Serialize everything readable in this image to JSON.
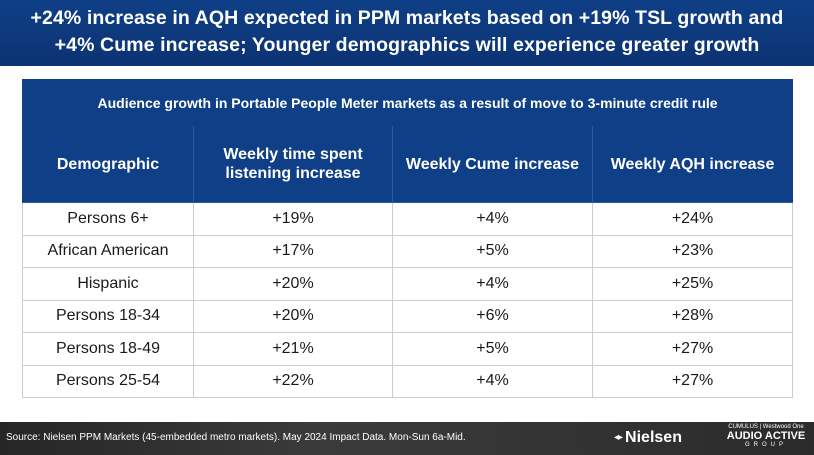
{
  "header": {
    "title_line1": "+24% increase in AQH expected in PPM markets based on +19% TSL growth and",
    "title_line2": "+4% Cume increase; Younger demographics will experience greater growth"
  },
  "table": {
    "caption": "Audience growth in Portable People Meter markets as a result of move to 3-minute credit rule",
    "columns": [
      "Demographic",
      "Weekly time spent listening increase",
      "Weekly Cume increase",
      "Weekly AQH increase"
    ],
    "rows": [
      [
        "Persons 6+",
        "+19%",
        "+4%",
        "+24%"
      ],
      [
        "African American",
        "+17%",
        "+5%",
        "+23%"
      ],
      [
        "Hispanic",
        "+20%",
        "+4%",
        "+25%"
      ],
      [
        "Persons 18-34",
        "+20%",
        "+6%",
        "+28%"
      ],
      [
        "Persons 18-49",
        "+21%",
        "+5%",
        "+27%"
      ],
      [
        "Persons 25-54",
        "+22%",
        "+4%",
        "+27%"
      ]
    ]
  },
  "footer": {
    "source": "Source: Nielsen PPM Markets (45-embedded metro markets). May 2024 Impact Data. Mon-Sun 6a-Mid.",
    "nielsen_logo": "Nielsen",
    "aag_logo_top": "CUMULUS | Westwood One",
    "aag_logo_main": "AUDIO ACTIVE",
    "aag_logo_sub": "GROUP"
  },
  "colors": {
    "brand_blue": "#0f3f86",
    "footer_dark": "#2b2b2b"
  }
}
